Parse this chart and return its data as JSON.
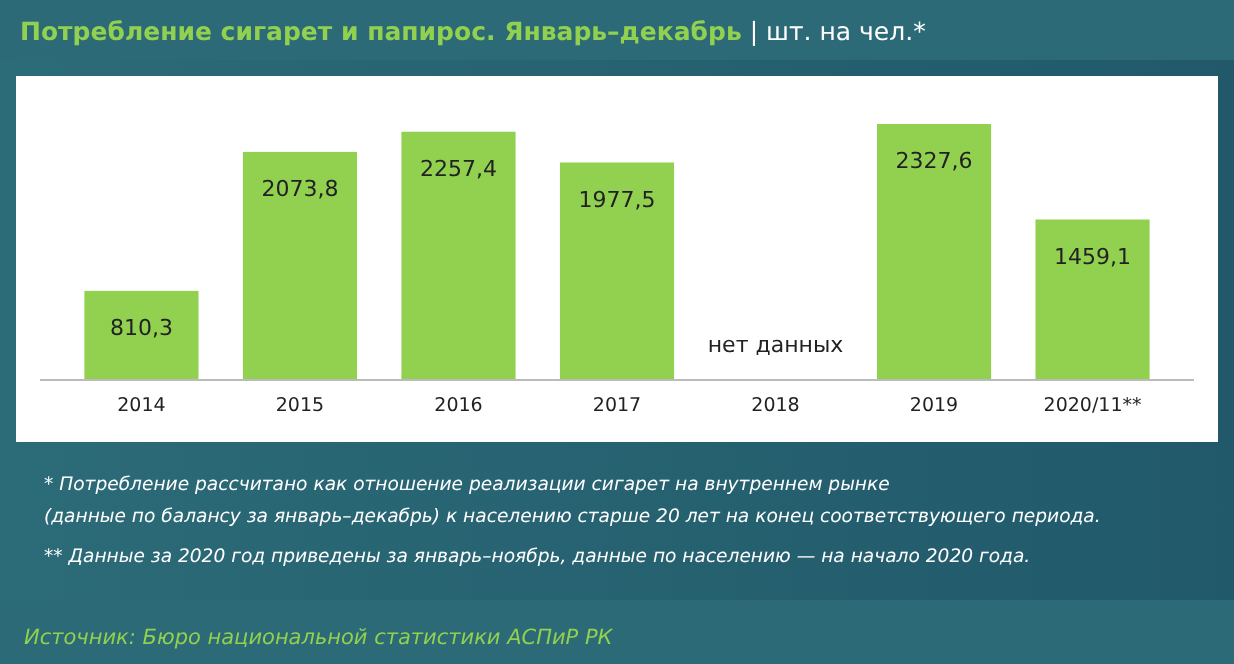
{
  "chart_data": {
    "type": "bar",
    "title": "Потребление сигарет и папирос. Январь–декабрь",
    "subtitle": "| шт. на чел.*",
    "categories": [
      "2014",
      "2015",
      "2016",
      "2017",
      "2018",
      "2019",
      "2020/11**"
    ],
    "values": [
      810.3,
      2073.8,
      2257.4,
      1977.5,
      null,
      2327.6,
      1459.1
    ],
    "value_labels": [
      "810,3",
      "2073,8",
      "2257,4",
      "1977,5",
      null,
      "2327,6",
      "1459,1"
    ],
    "color": "#92d050",
    "annotations": [
      "нет данных",
      "* Потребление рассчитано как отношение реализации сигарет на внутреннем рынке\n(данные по балансу за январь–декабрь) к населению старше 20 лет на конец соответствующего периода.",
      "** Данные за 2020 год приведены за январь–ноябрь, данные по населению — на начало 2020 года.",
      "Источник: Бюро национальной статистики АСПиР РК"
    ]
  }
}
